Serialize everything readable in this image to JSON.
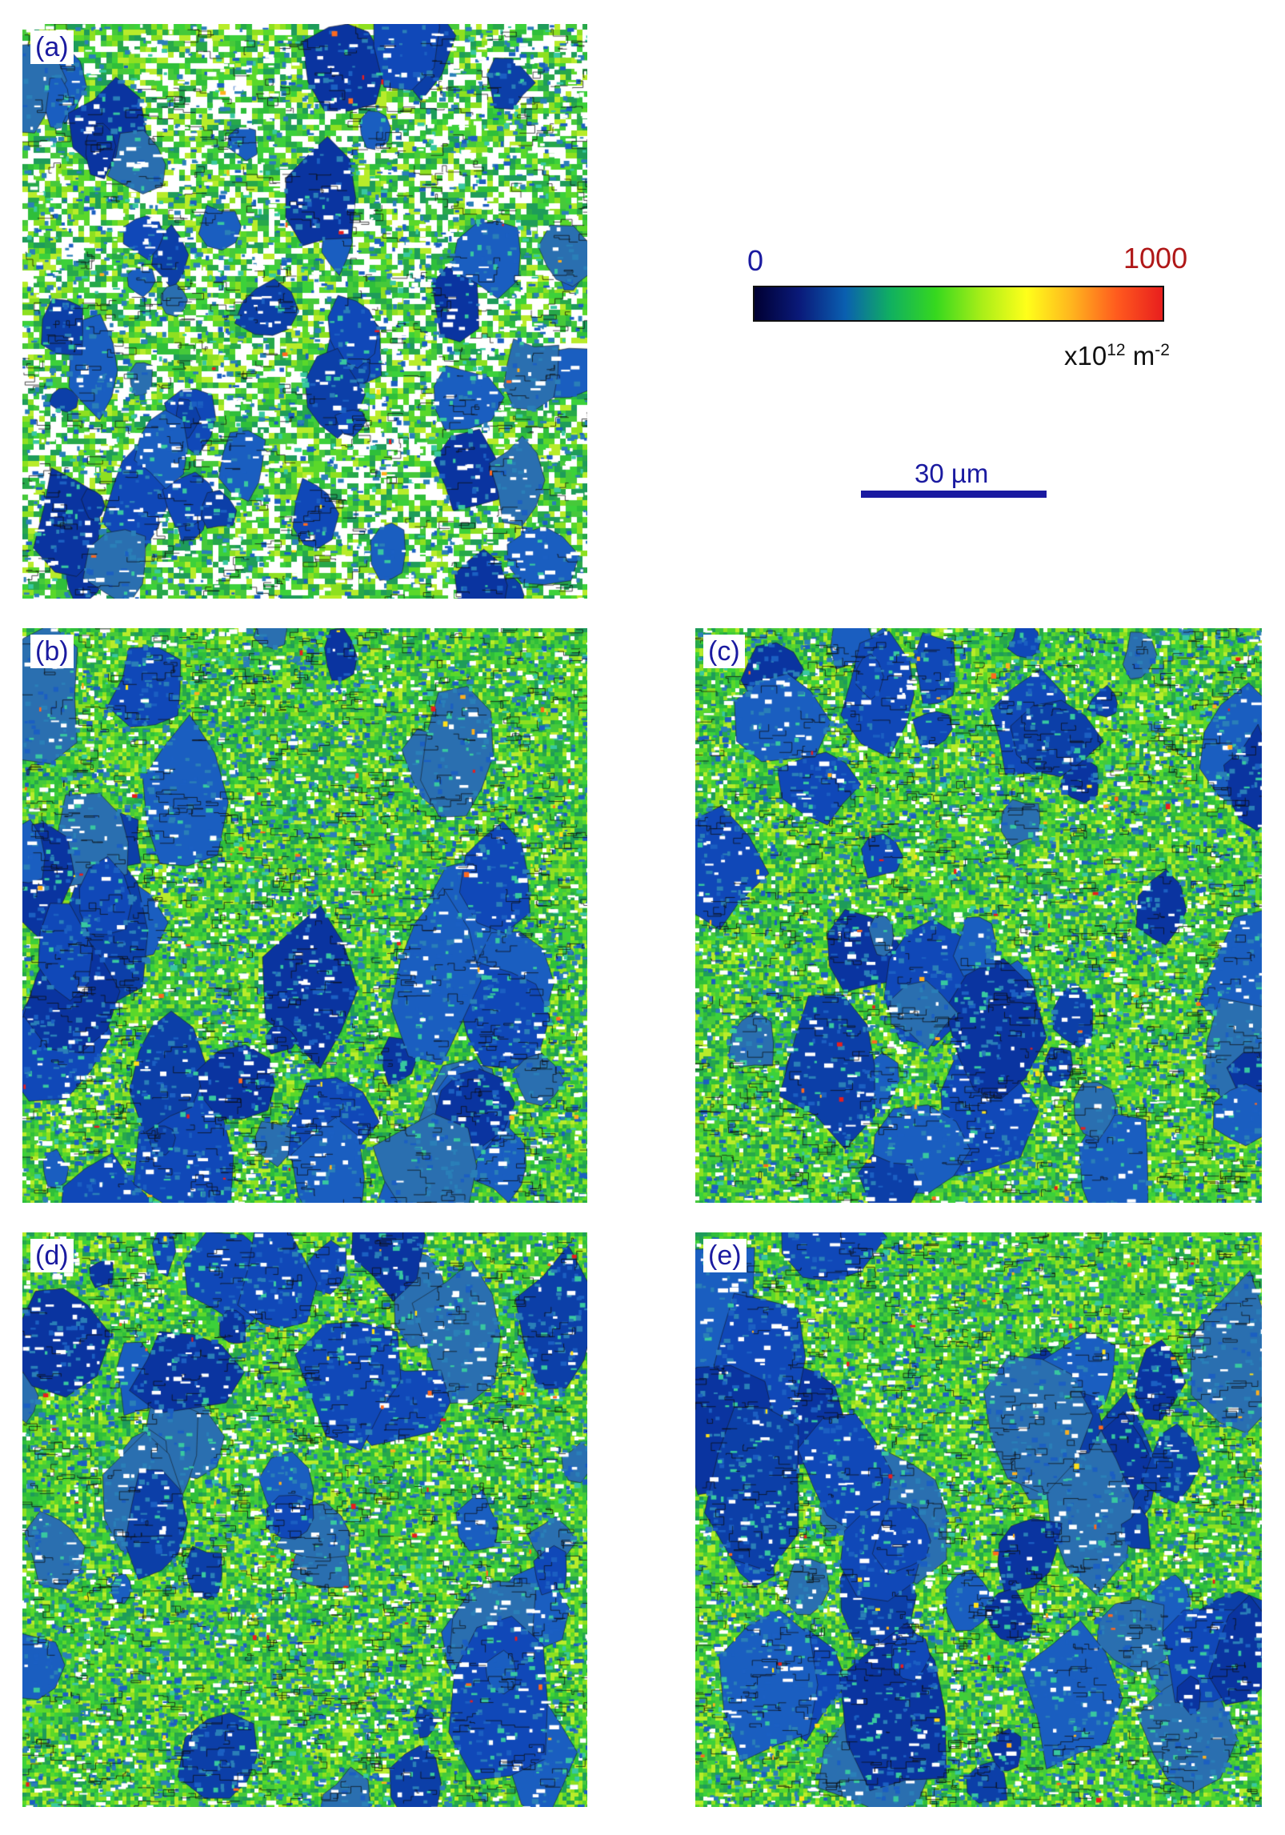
{
  "panels": [
    {
      "id": "a",
      "label": "(a)"
    },
    {
      "id": "b",
      "label": "(b)"
    },
    {
      "id": "c",
      "label": "(c)"
    },
    {
      "id": "d",
      "label": "(d)"
    },
    {
      "id": "e",
      "label": "(e)"
    }
  ],
  "colorbar": {
    "min_label": "0",
    "max_label": "1000",
    "unit_prefix": "x10",
    "unit_exp": "12",
    "unit_base": " m",
    "unit_exp2": "-2",
    "gradient_colors": [
      "#000033",
      "#0a1a7a",
      "#0a5fb0",
      "#10b060",
      "#36d81e",
      "#a8ee18",
      "#ffff1a",
      "#ffb41e",
      "#ff5a1e",
      "#e81e1e"
    ],
    "min_color": "#1a1aa0",
    "max_color": "#b01818"
  },
  "scalebar": {
    "label": "30 µm",
    "color": "#1a1aa0"
  }
}
